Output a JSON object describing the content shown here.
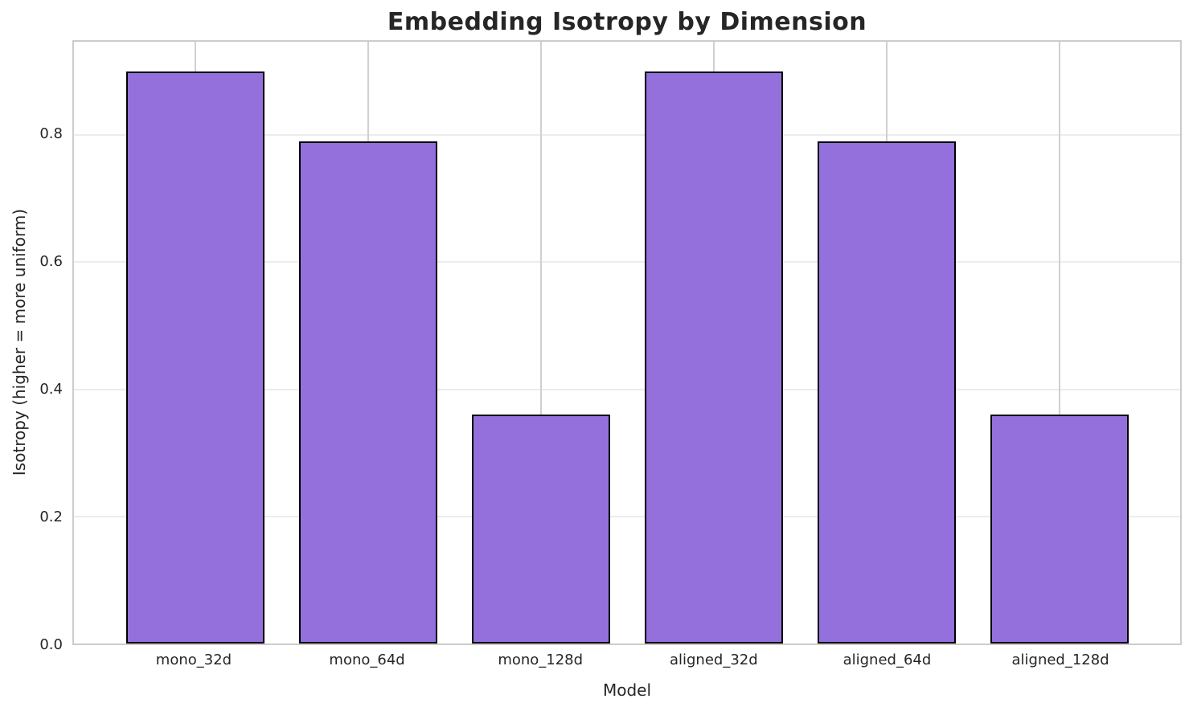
{
  "chart_data": {
    "type": "bar",
    "title": "Embedding Isotropy by Dimension",
    "xlabel": "Model",
    "ylabel": "Isotropy (higher = more uniform)",
    "categories": [
      "mono_32d",
      "mono_64d",
      "mono_128d",
      "aligned_32d",
      "aligned_64d",
      "aligned_128d"
    ],
    "values": [
      0.9,
      0.79,
      0.36,
      0.9,
      0.79,
      0.36
    ],
    "ylim": [
      0,
      0.947
    ],
    "xlim": [
      -0.7,
      5.7
    ],
    "yticks": [
      0.0,
      0.2,
      0.4,
      0.6,
      0.8
    ],
    "ytick_labels": [
      "0.0",
      "0.2",
      "0.4",
      "0.6",
      "0.8"
    ],
    "bar_width": 0.8,
    "grid": true,
    "legend": "none",
    "colors": {
      "bar_fill": "#9370DB",
      "bar_edge": "#000000",
      "grid_horizontal": "#ececec",
      "grid_vertical": "#d0d0d0",
      "spine": "#cccccc",
      "text": "#262626"
    }
  }
}
